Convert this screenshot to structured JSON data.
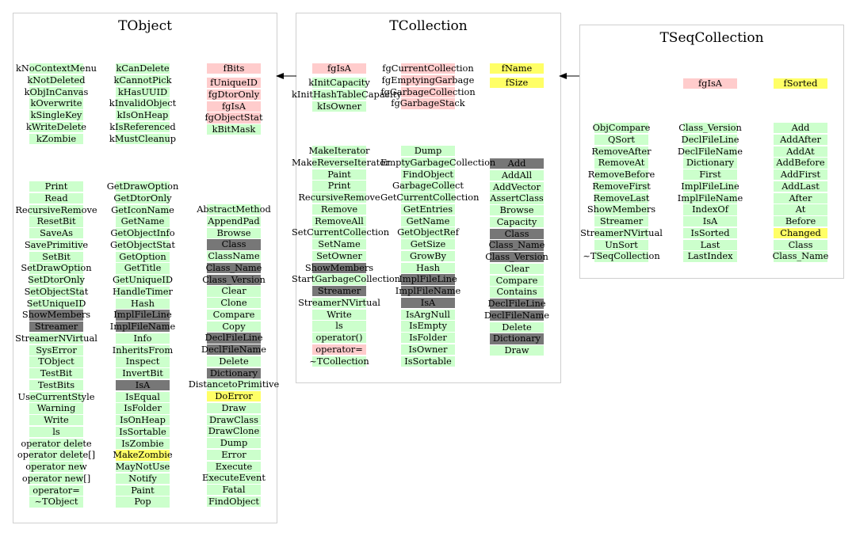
{
  "colors": {
    "green": "#ccffcc",
    "pink": "#ffcccc",
    "yellow": "#ffff66",
    "dark": "#777777"
  },
  "classes": [
    {
      "name": "TObject",
      "columns": [
        {
          "id": "c1",
          "items": [
            {
              "t": "kNoContextMenu",
              "c": "g"
            },
            {
              "t": "kNotDeleted",
              "c": "g"
            },
            {
              "t": "kObjInCanvas",
              "c": "g"
            },
            {
              "t": "kOverwrite",
              "c": "g"
            },
            {
              "t": "kSingleKey",
              "c": "g"
            },
            {
              "t": "kWriteDelete",
              "c": "g"
            },
            {
              "t": "kZombie",
              "c": "g"
            },
            {
              "t": "Print",
              "c": "g"
            },
            {
              "t": "Read",
              "c": "g"
            },
            {
              "t": "RecursiveRemove",
              "c": "g"
            },
            {
              "t": "ResetBit",
              "c": "g"
            },
            {
              "t": "SaveAs",
              "c": "g"
            },
            {
              "t": "SavePrimitive",
              "c": "g"
            },
            {
              "t": "SetBit",
              "c": "g"
            },
            {
              "t": "SetDrawOption",
              "c": "g"
            },
            {
              "t": "SetDtorOnly",
              "c": "g"
            },
            {
              "t": "SetObjectStat",
              "c": "g"
            },
            {
              "t": "SetUniqueID",
              "c": "g"
            },
            {
              "t": "ShowMembers",
              "c": "d"
            },
            {
              "t": "Streamer",
              "c": "d"
            },
            {
              "t": "StreamerNVirtual",
              "c": "g"
            },
            {
              "t": "SysError",
              "c": "g"
            },
            {
              "t": "TObject",
              "c": "g"
            },
            {
              "t": "TestBit",
              "c": "g"
            },
            {
              "t": "TestBits",
              "c": "g"
            },
            {
              "t": "UseCurrentStyle",
              "c": "g"
            },
            {
              "t": "Warning",
              "c": "g"
            },
            {
              "t": "Write",
              "c": "g"
            },
            {
              "t": "ls",
              "c": "g"
            },
            {
              "t": "operator delete",
              "c": "g"
            },
            {
              "t": "operator delete[]",
              "c": "g"
            },
            {
              "t": "operator new",
              "c": "g"
            },
            {
              "t": "operator new[]",
              "c": "g"
            },
            {
              "t": "operator=",
              "c": "g"
            },
            {
              "t": "~TObject",
              "c": "g"
            }
          ]
        },
        {
          "id": "c2",
          "items": [
            {
              "t": "kCanDelete",
              "c": "g"
            },
            {
              "t": "kCannotPick",
              "c": "g"
            },
            {
              "t": "kHasUUID",
              "c": "g"
            },
            {
              "t": "kInvalidObject",
              "c": "g"
            },
            {
              "t": "kIsOnHeap",
              "c": "g"
            },
            {
              "t": "kIsReferenced",
              "c": "g"
            },
            {
              "t": "kMustCleanup",
              "c": "g"
            },
            {
              "t": "GetDrawOption",
              "c": "g"
            },
            {
              "t": "GetDtorOnly",
              "c": "g"
            },
            {
              "t": "GetIconName",
              "c": "g"
            },
            {
              "t": "GetName",
              "c": "g"
            },
            {
              "t": "GetObjectInfo",
              "c": "g"
            },
            {
              "t": "GetObjectStat",
              "c": "g"
            },
            {
              "t": "GetOption",
              "c": "g"
            },
            {
              "t": "GetTitle",
              "c": "g"
            },
            {
              "t": "GetUniqueID",
              "c": "g"
            },
            {
              "t": "HandleTimer",
              "c": "g"
            },
            {
              "t": "Hash",
              "c": "g"
            },
            {
              "t": "ImplFileLine",
              "c": "d"
            },
            {
              "t": "ImplFileName",
              "c": "d"
            },
            {
              "t": "Info",
              "c": "g"
            },
            {
              "t": "InheritsFrom",
              "c": "g"
            },
            {
              "t": "Inspect",
              "c": "g"
            },
            {
              "t": "InvertBit",
              "c": "g"
            },
            {
              "t": "IsA",
              "c": "d"
            },
            {
              "t": "IsEqual",
              "c": "g"
            },
            {
              "t": "IsFolder",
              "c": "g"
            },
            {
              "t": "IsOnHeap",
              "c": "g"
            },
            {
              "t": "IsSortable",
              "c": "g"
            },
            {
              "t": "IsZombie",
              "c": "g"
            },
            {
              "t": "MakeZombie",
              "c": "y"
            },
            {
              "t": "MayNotUse",
              "c": "g"
            },
            {
              "t": "Notify",
              "c": "g"
            },
            {
              "t": "Paint",
              "c": "g"
            },
            {
              "t": "Pop",
              "c": "g"
            }
          ]
        },
        {
          "id": "c3",
          "items": [
            {
              "t": "fBits",
              "c": "p"
            },
            {
              "t": "fUniqueID",
              "c": "p"
            },
            {
              "t": "fgDtorOnly",
              "c": "p"
            },
            {
              "t": "fgIsA",
              "c": "p"
            },
            {
              "t": "fgObjectStat",
              "c": "p"
            },
            {
              "t": "kBitMask",
              "c": "g"
            },
            {
              "t": "AbstractMethod",
              "c": "g"
            },
            {
              "t": "AppendPad",
              "c": "g"
            },
            {
              "t": "Browse",
              "c": "g"
            },
            {
              "t": "Class",
              "c": "d"
            },
            {
              "t": "ClassName",
              "c": "g"
            },
            {
              "t": "Class_Name",
              "c": "d"
            },
            {
              "t": "Class_Version",
              "c": "d"
            },
            {
              "t": "Clear",
              "c": "g"
            },
            {
              "t": "Clone",
              "c": "g"
            },
            {
              "t": "Compare",
              "c": "g"
            },
            {
              "t": "Copy",
              "c": "g"
            },
            {
              "t": "DeclFileLine",
              "c": "d"
            },
            {
              "t": "DeclFileName",
              "c": "d"
            },
            {
              "t": "Delete",
              "c": "g"
            },
            {
              "t": "Dictionary",
              "c": "d"
            },
            {
              "t": "DistancetoPrimitive",
              "c": "g"
            },
            {
              "t": "DoError",
              "c": "y"
            },
            {
              "t": "Draw",
              "c": "g"
            },
            {
              "t": "DrawClass",
              "c": "g"
            },
            {
              "t": "DrawClone",
              "c": "g"
            },
            {
              "t": "Dump",
              "c": "g"
            },
            {
              "t": "Error",
              "c": "g"
            },
            {
              "t": "Execute",
              "c": "g"
            },
            {
              "t": "ExecuteEvent",
              "c": "g"
            },
            {
              "t": "Fatal",
              "c": "g"
            },
            {
              "t": "FindObject",
              "c": "g"
            }
          ]
        }
      ]
    },
    {
      "name": "TCollection",
      "columns": [
        {
          "id": "d1",
          "items": [
            {
              "t": "fgIsA",
              "c": "p"
            },
            {
              "t": "kInitCapacity",
              "c": "g"
            },
            {
              "t": "kInitHashTableCapacity",
              "c": "g"
            },
            {
              "t": "kIsOwner",
              "c": "g"
            },
            {
              "t": "MakeIterator",
              "c": "g"
            },
            {
              "t": "MakeReverseIterator",
              "c": "g"
            },
            {
              "t": "Paint",
              "c": "g"
            },
            {
              "t": "Print",
              "c": "g"
            },
            {
              "t": "RecursiveRemove",
              "c": "g"
            },
            {
              "t": "Remove",
              "c": "g"
            },
            {
              "t": "RemoveAll",
              "c": "g"
            },
            {
              "t": "SetCurrentCollection",
              "c": "g"
            },
            {
              "t": "SetName",
              "c": "g"
            },
            {
              "t": "SetOwner",
              "c": "g"
            },
            {
              "t": "ShowMembers",
              "c": "d"
            },
            {
              "t": "StartGarbageCollection",
              "c": "g"
            },
            {
              "t": "Streamer",
              "c": "d"
            },
            {
              "t": "StreamerNVirtual",
              "c": "g"
            },
            {
              "t": "Write",
              "c": "g"
            },
            {
              "t": "ls",
              "c": "g"
            },
            {
              "t": "operator()",
              "c": "g"
            },
            {
              "t": "operator=",
              "c": "p"
            },
            {
              "t": "~TCollection",
              "c": "g"
            }
          ]
        },
        {
          "id": "d2",
          "items": [
            {
              "t": "fgCurrentCollection",
              "c": "p"
            },
            {
              "t": "fgEmptyingGarbage",
              "c": "p"
            },
            {
              "t": "fgGarbageCollection",
              "c": "p"
            },
            {
              "t": "fgGarbageStack",
              "c": "p"
            },
            {
              "t": "Dump",
              "c": "g"
            },
            {
              "t": "EmptyGarbageCollection",
              "c": "g"
            },
            {
              "t": "FindObject",
              "c": "g"
            },
            {
              "t": "GarbageCollect",
              "c": "g"
            },
            {
              "t": "GetCurrentCollection",
              "c": "g"
            },
            {
              "t": "GetEntries",
              "c": "g"
            },
            {
              "t": "GetName",
              "c": "g"
            },
            {
              "t": "GetObjectRef",
              "c": "g"
            },
            {
              "t": "GetSize",
              "c": "g"
            },
            {
              "t": "GrowBy",
              "c": "g"
            },
            {
              "t": "Hash",
              "c": "g"
            },
            {
              "t": "ImplFileLine",
              "c": "d"
            },
            {
              "t": "ImplFileName",
              "c": "d"
            },
            {
              "t": "IsA",
              "c": "d"
            },
            {
              "t": "IsArgNull",
              "c": "g"
            },
            {
              "t": "IsEmpty",
              "c": "g"
            },
            {
              "t": "IsFolder",
              "c": "g"
            },
            {
              "t": "IsOwner",
              "c": "g"
            },
            {
              "t": "IsSortable",
              "c": "g"
            }
          ]
        },
        {
          "id": "d3",
          "items": [
            {
              "t": "fName",
              "c": "y"
            },
            {
              "t": "fSize",
              "c": "y"
            },
            {
              "t": "Add",
              "c": "d"
            },
            {
              "t": "AddAll",
              "c": "g"
            },
            {
              "t": "AddVector",
              "c": "g"
            },
            {
              "t": "AssertClass",
              "c": "g"
            },
            {
              "t": "Browse",
              "c": "g"
            },
            {
              "t": "Capacity",
              "c": "g"
            },
            {
              "t": "Class",
              "c": "d"
            },
            {
              "t": "Class_Name",
              "c": "d"
            },
            {
              "t": "Class_Version",
              "c": "d"
            },
            {
              "t": "Clear",
              "c": "g"
            },
            {
              "t": "Compare",
              "c": "g"
            },
            {
              "t": "Contains",
              "c": "g"
            },
            {
              "t": "DeclFileLine",
              "c": "d"
            },
            {
              "t": "DeclFileName",
              "c": "d"
            },
            {
              "t": "Delete",
              "c": "g"
            },
            {
              "t": "Dictionary",
              "c": "d"
            },
            {
              "t": "Draw",
              "c": "g"
            }
          ]
        }
      ]
    },
    {
      "name": "TSeqCollection",
      "columns": [
        {
          "id": "e1",
          "items": [
            {
              "t": "ObjCompare",
              "c": "g"
            },
            {
              "t": "QSort",
              "c": "g"
            },
            {
              "t": "RemoveAfter",
              "c": "g"
            },
            {
              "t": "RemoveAt",
              "c": "g"
            },
            {
              "t": "RemoveBefore",
              "c": "g"
            },
            {
              "t": "RemoveFirst",
              "c": "g"
            },
            {
              "t": "RemoveLast",
              "c": "g"
            },
            {
              "t": "ShowMembers",
              "c": "g"
            },
            {
              "t": "Streamer",
              "c": "g"
            },
            {
              "t": "StreamerNVirtual",
              "c": "g"
            },
            {
              "t": "UnSort",
              "c": "g"
            },
            {
              "t": "~TSeqCollection",
              "c": "g"
            }
          ]
        },
        {
          "id": "e2",
          "items": [
            {
              "t": "fgIsA",
              "c": "p"
            },
            {
              "t": "Class_Version",
              "c": "g"
            },
            {
              "t": "DeclFileLine",
              "c": "g"
            },
            {
              "t": "DeclFileName",
              "c": "g"
            },
            {
              "t": "Dictionary",
              "c": "g"
            },
            {
              "t": "First",
              "c": "g"
            },
            {
              "t": "ImplFileLine",
              "c": "g"
            },
            {
              "t": "ImplFileName",
              "c": "g"
            },
            {
              "t": "IndexOf",
              "c": "g"
            },
            {
              "t": "IsA",
              "c": "g"
            },
            {
              "t": "IsSorted",
              "c": "g"
            },
            {
              "t": "Last",
              "c": "g"
            },
            {
              "t": "LastIndex",
              "c": "g"
            }
          ]
        },
        {
          "id": "e3",
          "items": [
            {
              "t": "fSorted",
              "c": "y"
            },
            {
              "t": "Add",
              "c": "g"
            },
            {
              "t": "AddAfter",
              "c": "g"
            },
            {
              "t": "AddAt",
              "c": "g"
            },
            {
              "t": "AddBefore",
              "c": "g"
            },
            {
              "t": "AddFirst",
              "c": "g"
            },
            {
              "t": "AddLast",
              "c": "g"
            },
            {
              "t": "After",
              "c": "g"
            },
            {
              "t": "At",
              "c": "g"
            },
            {
              "t": "Before",
              "c": "g"
            },
            {
              "t": "Changed",
              "c": "y"
            },
            {
              "t": "Class",
              "c": "g"
            },
            {
              "t": "Class_Name",
              "c": "g"
            }
          ]
        }
      ]
    }
  ]
}
